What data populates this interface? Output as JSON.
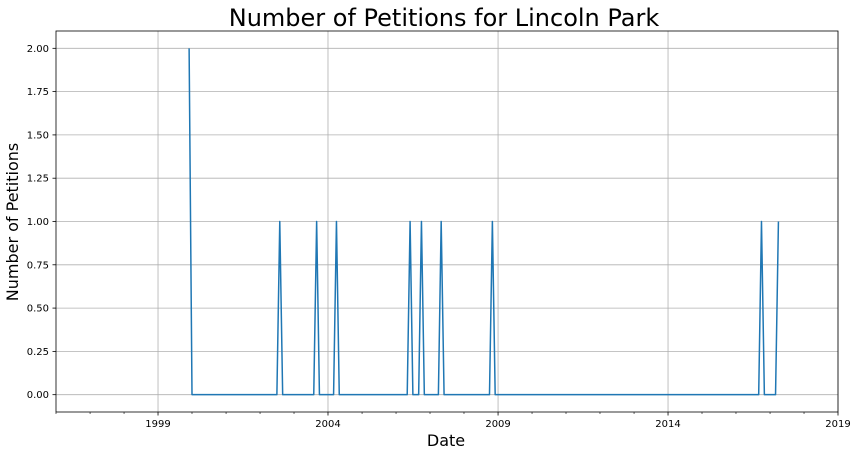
{
  "chart_data": {
    "type": "line",
    "title": "Number of Petitions for Lincoln Park",
    "xlabel": "Date",
    "ylabel": "Number of Petitions",
    "xlim": [
      "1996-01-01",
      "2019-01-01"
    ],
    "ylim": [
      -0.1,
      2.1
    ],
    "x_ticks": [
      "1999",
      "2004",
      "2009",
      "2014",
      "2019"
    ],
    "y_ticks": [
      "0.00",
      "0.25",
      "0.50",
      "0.75",
      "1.00",
      "1.25",
      "1.50",
      "1.75",
      "2.00"
    ],
    "grid": true,
    "series": [
      {
        "color": "#1f77b4",
        "points": [
          [
            "1999-12-01",
            2
          ],
          [
            "2000-01-01",
            0
          ],
          [
            "2002-07-01",
            0
          ],
          [
            "2002-08-01",
            1
          ],
          [
            "2002-09-01",
            0
          ],
          [
            "2003-08-01",
            0
          ],
          [
            "2003-09-01",
            1
          ],
          [
            "2003-10-01",
            0
          ],
          [
            "2004-03-01",
            0
          ],
          [
            "2004-04-01",
            1
          ],
          [
            "2004-05-01",
            0
          ],
          [
            "2006-05-01",
            0
          ],
          [
            "2006-06-01",
            1
          ],
          [
            "2006-07-01",
            0
          ],
          [
            "2006-09-01",
            0
          ],
          [
            "2006-10-01",
            1
          ],
          [
            "2006-11-01",
            0
          ],
          [
            "2007-04-01",
            0
          ],
          [
            "2007-05-01",
            1
          ],
          [
            "2007-06-01",
            0
          ],
          [
            "2008-10-01",
            0
          ],
          [
            "2008-11-01",
            1
          ],
          [
            "2008-12-01",
            0
          ],
          [
            "2016-09-01",
            0
          ],
          [
            "2016-10-01",
            1
          ],
          [
            "2016-11-01",
            0
          ],
          [
            "2017-03-01",
            0
          ],
          [
            "2017-04-01",
            1
          ]
        ]
      }
    ]
  }
}
